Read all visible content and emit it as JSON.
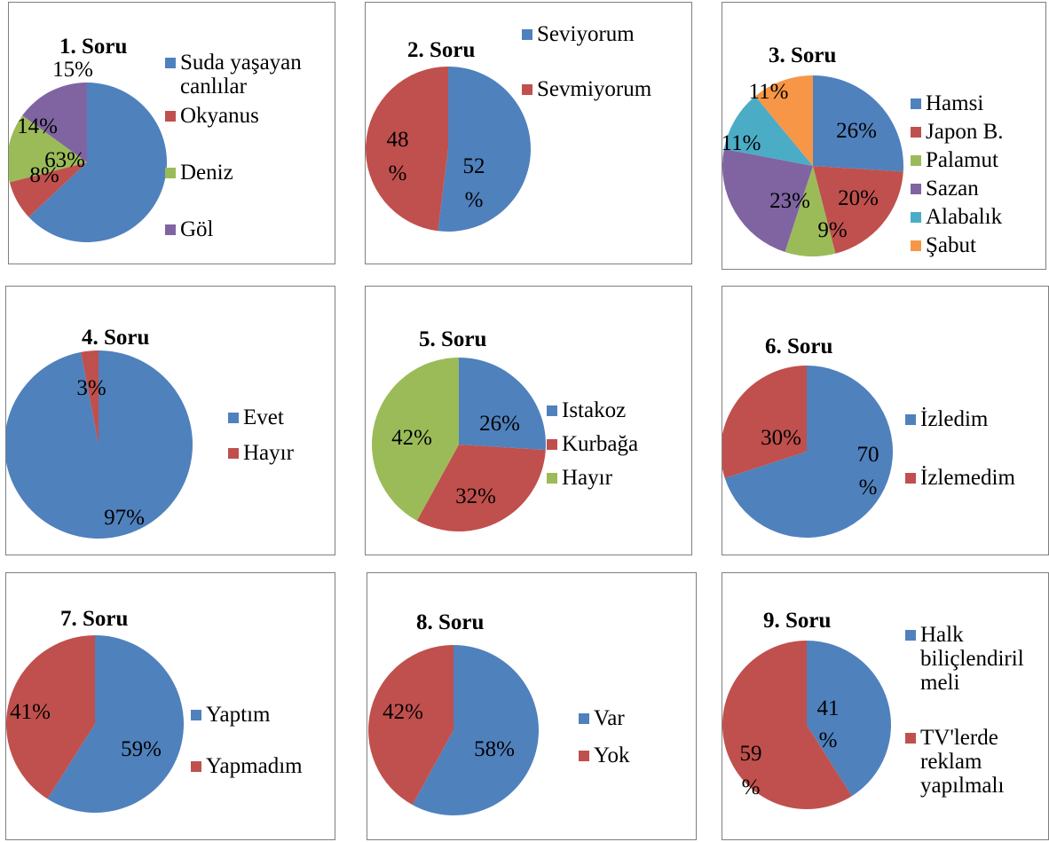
{
  "colors": {
    "blue": "#4f81bd",
    "red": "#c0504d",
    "green": "#9bbb59",
    "purple": "#8064a2",
    "teal": "#4bacc6",
    "orange": "#f79646"
  },
  "chart_data": [
    {
      "type": "pie",
      "title": "1. Soru",
      "slices": [
        {
          "label": "Suda yaşayan canlılar",
          "value": 63,
          "display": "63%",
          "color": "#4f81bd"
        },
        {
          "label": "Okyanus",
          "value": 8,
          "display": "8%",
          "color": "#c0504d"
        },
        {
          "label": "Deniz",
          "value": 14,
          "display": "14%",
          "color": "#9bbb59"
        },
        {
          "label": "Göl",
          "value": 15,
          "display": "15%",
          "color": "#8064a2"
        }
      ]
    },
    {
      "type": "pie",
      "title": "2. Soru",
      "slices": [
        {
          "label": "Seviyorum",
          "value": 52,
          "display": "52 %",
          "color": "#4f81bd"
        },
        {
          "label": "Sevmiyorum",
          "value": 48,
          "display": "48 %",
          "color": "#c0504d"
        }
      ]
    },
    {
      "type": "pie",
      "title": "3. Soru",
      "slices": [
        {
          "label": "Hamsi",
          "value": 26,
          "display": "26%",
          "color": "#4f81bd"
        },
        {
          "label": "Japon B.",
          "value": 20,
          "display": "20%",
          "color": "#c0504d"
        },
        {
          "label": "Palamut",
          "value": 9,
          "display": "9%",
          "color": "#9bbb59"
        },
        {
          "label": "Sazan",
          "value": 23,
          "display": "23%",
          "color": "#8064a2"
        },
        {
          "label": "Alabalık",
          "value": 11,
          "display": "11%",
          "color": "#4bacc6"
        },
        {
          "label": "Şabut",
          "value": 11,
          "display": "11%",
          "color": "#f79646"
        }
      ]
    },
    {
      "type": "pie",
      "title": "4. Soru",
      "slices": [
        {
          "label": "Evet",
          "value": 97,
          "display": "97%",
          "color": "#4f81bd"
        },
        {
          "label": "Hayır",
          "value": 3,
          "display": "3%",
          "color": "#c0504d"
        }
      ]
    },
    {
      "type": "pie",
      "title": "5. Soru",
      "slices": [
        {
          "label": "Istakoz",
          "value": 26,
          "display": "26%",
          "color": "#4f81bd"
        },
        {
          "label": "Kurbağa",
          "value": 32,
          "display": "32%",
          "color": "#c0504d"
        },
        {
          "label": "Hayır",
          "value": 42,
          "display": "42%",
          "color": "#9bbb59"
        }
      ]
    },
    {
      "type": "pie",
      "title": "6. Soru",
      "slices": [
        {
          "label": "İzledim",
          "value": 70,
          "display": "70 %",
          "color": "#4f81bd"
        },
        {
          "label": "İzlemedim",
          "value": 30,
          "display": "30%",
          "color": "#c0504d"
        }
      ]
    },
    {
      "type": "pie",
      "title": "7. Soru",
      "slices": [
        {
          "label": "Yaptım",
          "value": 59,
          "display": "59%",
          "color": "#4f81bd"
        },
        {
          "label": "Yapmadım",
          "value": 41,
          "display": "41%",
          "color": "#c0504d"
        }
      ]
    },
    {
      "type": "pie",
      "title": "8. Soru",
      "slices": [
        {
          "label": "Var",
          "value": 58,
          "display": "58%",
          "color": "#4f81bd"
        },
        {
          "label": "Yok",
          "value": 42,
          "display": "42%",
          "color": "#c0504d"
        }
      ]
    },
    {
      "type": "pie",
      "title": "9. Soru",
      "slices": [
        {
          "label": "Halk biliçlendiril meli",
          "value": 41,
          "display": "41 %",
          "color": "#4f81bd"
        },
        {
          "label": "TV'lerde reklam yapılmalı",
          "value": 59,
          "display": "59 %",
          "color": "#c0504d"
        }
      ]
    }
  ]
}
